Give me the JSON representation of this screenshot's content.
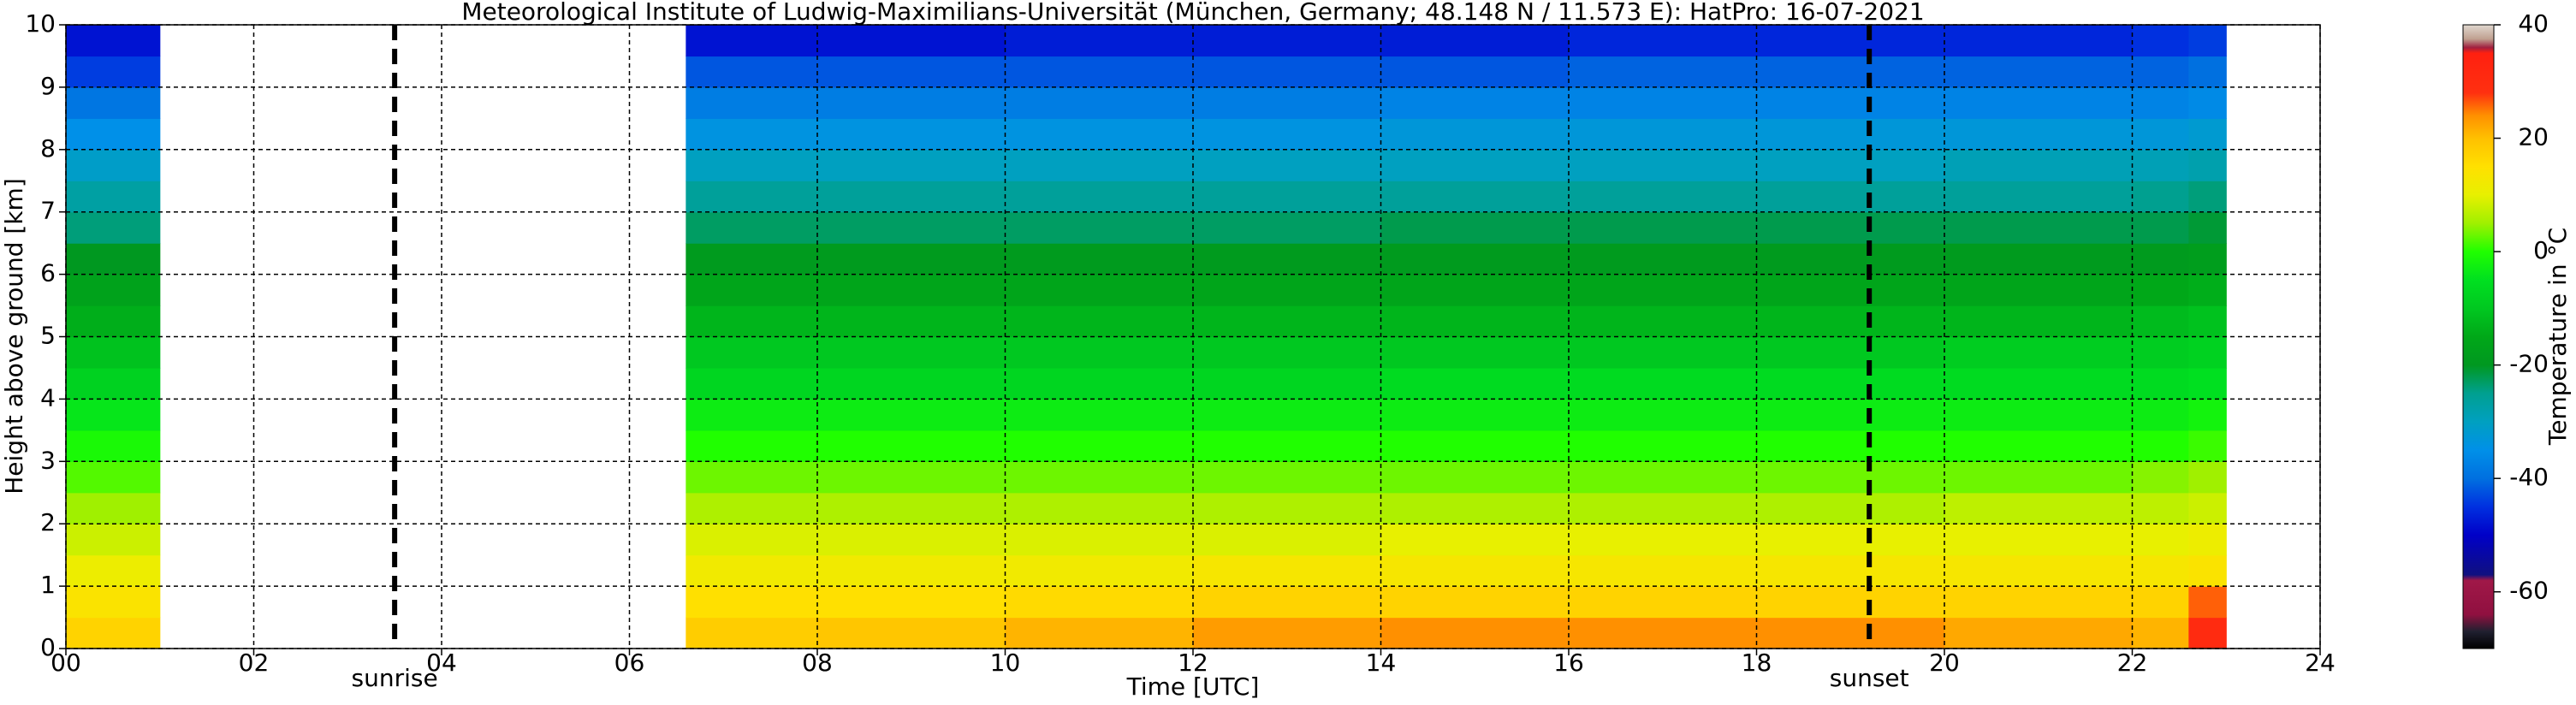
{
  "chart_data": {
    "type": "heatmap",
    "title": "Meteorological Institute of Ludwig-Maximilians-Universität (München, Germany; 48.148 N / 11.573 E):    HatPro: 16-07-2021",
    "xlabel": "Time [UTC]",
    "ylabel": "Height above ground [km]",
    "colorbar_label": "Temperature in °C",
    "xbins": [
      0,
      1,
      6.6,
      8,
      10,
      12,
      14,
      16,
      18,
      20,
      22,
      22.6,
      23,
      24
    ],
    "ybins": [
      0,
      0.5,
      1,
      1.5,
      2,
      2.5,
      3,
      3.5,
      4,
      4.5,
      5,
      5.5,
      6,
      6.5,
      7,
      7.5,
      8,
      8.5,
      9,
      9.5,
      10
    ],
    "z": [
      [
        17,
        14,
        11,
        8,
        5,
        2,
        -1,
        -4,
        -8,
        -11,
        -14,
        -17,
        -20,
        -24,
        -27,
        -31,
        -35,
        -39,
        -44,
        -48
      ],
      [
        null,
        null,
        null,
        null,
        null,
        null,
        null,
        null,
        null,
        null,
        null,
        null,
        null,
        null,
        null,
        null,
        null,
        null,
        null,
        null
      ],
      [
        18,
        15,
        12,
        9,
        6,
        3,
        0,
        -3,
        -7,
        -10,
        -13,
        -16,
        -19,
        -23,
        -26,
        -30,
        -34,
        -38,
        -42,
        -48
      ],
      [
        19,
        15,
        12,
        9,
        6,
        3,
        0,
        -3,
        -7,
        -10,
        -13,
        -16,
        -19,
        -23,
        -26,
        -30,
        -34,
        -38,
        -42,
        -48
      ],
      [
        21,
        16,
        12,
        9,
        6,
        3,
        0,
        -3,
        -7,
        -10,
        -13,
        -16,
        -19,
        -23,
        -26,
        -30,
        -34,
        -38,
        -42,
        -47
      ],
      [
        23,
        17,
        13,
        9,
        6,
        3,
        0,
        -3,
        -7,
        -10,
        -13,
        -16,
        -19,
        -23,
        -26,
        -30,
        -34,
        -38,
        -42,
        -47
      ],
      [
        24,
        17,
        13,
        10,
        6,
        3,
        0,
        -3,
        -6,
        -10,
        -13,
        -16,
        -19,
        -22,
        -26,
        -30,
        -33,
        -37,
        -42,
        -47
      ],
      [
        24,
        17,
        13,
        10,
        6,
        3,
        0,
        -3,
        -6,
        -10,
        -13,
        -16,
        -19,
        -22,
        -26,
        -30,
        -33,
        -37,
        -41,
        -46
      ],
      [
        24,
        17,
        13,
        10,
        6,
        3,
        0,
        -3,
        -6,
        -10,
        -13,
        -16,
        -19,
        -22,
        -26,
        -30,
        -33,
        -37,
        -41,
        -46
      ],
      [
        22,
        17,
        13,
        10,
        7,
        3,
        0,
        -3,
        -6,
        -9,
        -13,
        -16,
        -19,
        -22,
        -26,
        -29,
        -33,
        -37,
        -41,
        -46
      ],
      [
        21,
        17,
        13,
        10,
        7,
        4,
        0,
        -3,
        -6,
        -9,
        -12,
        -15,
        -19,
        -22,
        -25,
        -29,
        -33,
        -37,
        -41,
        -45
      ],
      [
        30,
        26,
        14,
        11,
        8,
        5,
        1,
        -2,
        -5,
        -8,
        -11,
        -14,
        -18,
        -21,
        -24,
        -28,
        -32,
        -36,
        -40,
        -44
      ],
      [
        null,
        null,
        null,
        null,
        null,
        null,
        null,
        null,
        null,
        null,
        null,
        null,
        null,
        null,
        null,
        null,
        null,
        null,
        null,
        null
      ]
    ],
    "xlim": [
      0,
      24
    ],
    "xticks": [
      {
        "value": 0,
        "label": "00"
      },
      {
        "value": 2,
        "label": "02"
      },
      {
        "value": 4,
        "label": "04"
      },
      {
        "value": 6,
        "label": "06"
      },
      {
        "value": 8,
        "label": "08"
      },
      10,
      12,
      14,
      16,
      18,
      20,
      22,
      24
    ],
    "ylim": [
      0,
      10
    ],
    "yticks": [
      0,
      1,
      2,
      3,
      4,
      5,
      6,
      7,
      8,
      9,
      10
    ],
    "clim": [
      -70,
      40
    ],
    "cticks": [
      40,
      20,
      0,
      -20,
      -40,
      -60
    ],
    "grid": true,
    "annotations": [
      {
        "x": 3.5,
        "label": "sunrise"
      },
      {
        "x": 19.2,
        "label": "sunset"
      }
    ],
    "colorscale": [
      [
        -70,
        "#000000"
      ],
      [
        -67,
        "#202030"
      ],
      [
        -64,
        "#901040"
      ],
      [
        -58,
        "#a01848"
      ],
      [
        -57,
        "#101080"
      ],
      [
        -50,
        "#0000c8"
      ],
      [
        -45,
        "#0030e0"
      ],
      [
        -40,
        "#0070e0"
      ],
      [
        -35,
        "#0090e8"
      ],
      [
        -30,
        "#00a0c0"
      ],
      [
        -25,
        "#00a090"
      ],
      [
        -20,
        "#009820"
      ],
      [
        -15,
        "#00a818"
      ],
      [
        -10,
        "#00c820"
      ],
      [
        -5,
        "#00e020"
      ],
      [
        0,
        "#20ff00"
      ],
      [
        5,
        "#a0f000"
      ],
      [
        10,
        "#e8f000"
      ],
      [
        15,
        "#ffe000"
      ],
      [
        20,
        "#ffc000"
      ],
      [
        24,
        "#ff9000"
      ],
      [
        28,
        "#ff3010"
      ],
      [
        35,
        "#ff2010"
      ],
      [
        36,
        "#a02040"
      ],
      [
        37.5,
        "#c0a090"
      ],
      [
        40,
        "#e0d8d0"
      ]
    ]
  }
}
